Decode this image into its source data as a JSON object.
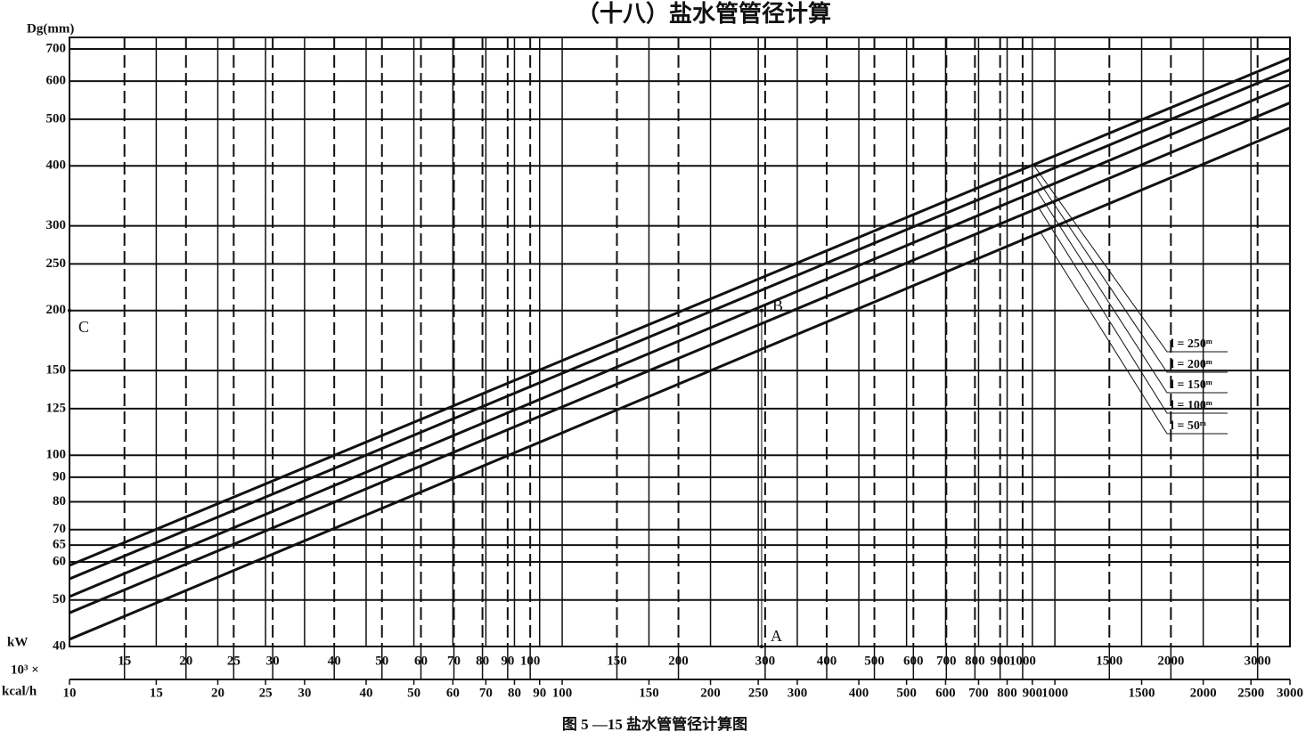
{
  "chart_data": {
    "type": "line",
    "title": "（十八）盐水管管径计算",
    "caption": "图 5 —15   盐水管管径计算图",
    "ylabel": "Dg(mm)",
    "xlabel_prefix": "10³ ×",
    "xlabel": "kcal/h",
    "x2label": "kW",
    "log_x": true,
    "log_y": true,
    "grid": true,
    "xlim": [
      10,
      3000
    ],
    "x2lim": [
      11.6,
      3490
    ],
    "ylim": [
      40,
      740
    ],
    "yticks": [
      40,
      50,
      60,
      65,
      70,
      80,
      90,
      100,
      125,
      150,
      200,
      250,
      300,
      400,
      500,
      600,
      700
    ],
    "xticks": [
      10,
      15,
      20,
      25,
      30,
      40,
      50,
      60,
      70,
      80,
      90,
      100,
      150,
      200,
      250,
      300,
      400,
      500,
      600,
      700,
      800,
      900,
      1000,
      1500,
      2000,
      2500,
      3000
    ],
    "x2ticks": [
      15,
      20,
      25,
      30,
      40,
      50,
      60,
      70,
      80,
      90,
      100,
      150,
      200,
      300,
      400,
      500,
      600,
      700,
      800,
      900,
      1000,
      1500,
      2000,
      3000
    ],
    "x": [
      10,
      3000
    ],
    "series": [
      {
        "name": "l = 250ᵐ",
        "color": "#111111",
        "values": [
          59.0,
          670
        ]
      },
      {
        "name": "l = 200ᵐ",
        "color": "#111111",
        "values": [
          55.3,
          634
        ]
      },
      {
        "name": "l = 150ᵐ",
        "color": "#111111",
        "values": [
          50.8,
          590
        ]
      },
      {
        "name": "l = 100ᵐ",
        "color": "#111111",
        "values": [
          47.0,
          541
        ]
      },
      {
        "name": "l = 50ᵐ",
        "color": "#111111",
        "values": [
          41.4,
          480
        ]
      }
    ],
    "annotations": [
      {
        "text": "A",
        "x": 254,
        "y": 40
      },
      {
        "text": "B",
        "x": 254,
        "y": 200
      },
      {
        "text": "C",
        "x": 10,
        "y": 200
      }
    ]
  }
}
